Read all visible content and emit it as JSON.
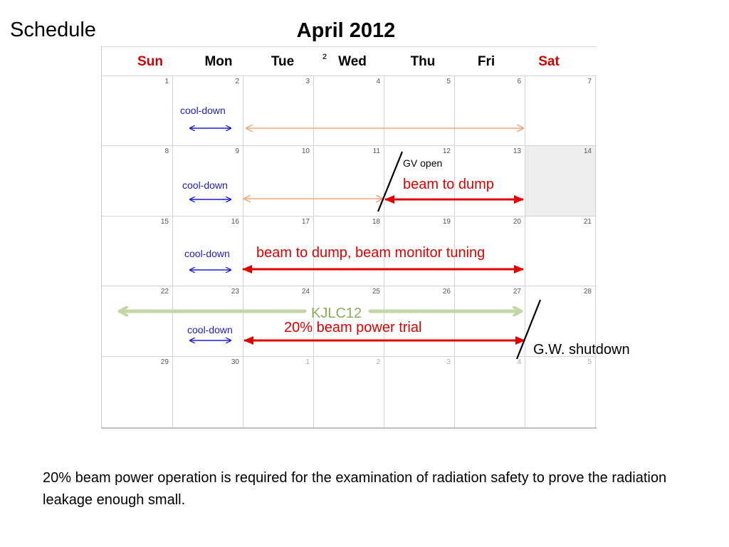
{
  "slide": {
    "title": "Schedule",
    "calendar_title": "April  2012",
    "note": "20% beam power operation is required for the examination of radiation safety to prove the radiation leakage enough small."
  },
  "calendar": {
    "days": [
      "Sun",
      "Mon",
      "Tue",
      "Wed",
      "Thu",
      "Fri",
      "Sat"
    ],
    "corner_mark": "2",
    "weeks": [
      [
        "1",
        "2",
        "3",
        "4",
        "5",
        "6",
        "7"
      ],
      [
        "8",
        "9",
        "10",
        "11",
        "12",
        "13",
        "14"
      ],
      [
        "15",
        "16",
        "17",
        "18",
        "19",
        "20",
        "21"
      ],
      [
        "22",
        "23",
        "24",
        "25",
        "26",
        "27",
        "28"
      ],
      [
        "29",
        "30",
        "1",
        "2",
        "3",
        "4",
        "5"
      ]
    ]
  },
  "annotations": {
    "cool_down": "cool-down",
    "beam_to_dump": "beam to dump",
    "gv_open": "GV open",
    "beam_tuning": "beam to dump, beam monitor tuning",
    "kjlc": "KJLC12",
    "trial": "20% beam power trial",
    "gw_shutdown": "G.W. shutdown"
  },
  "colors": {
    "cool_down_arrow": "#1c1cdd",
    "orange_arrow": "#f0a878",
    "red_arrow": "#e00000",
    "green_arrow": "#c5d6a6",
    "marker_line": "#000000"
  }
}
